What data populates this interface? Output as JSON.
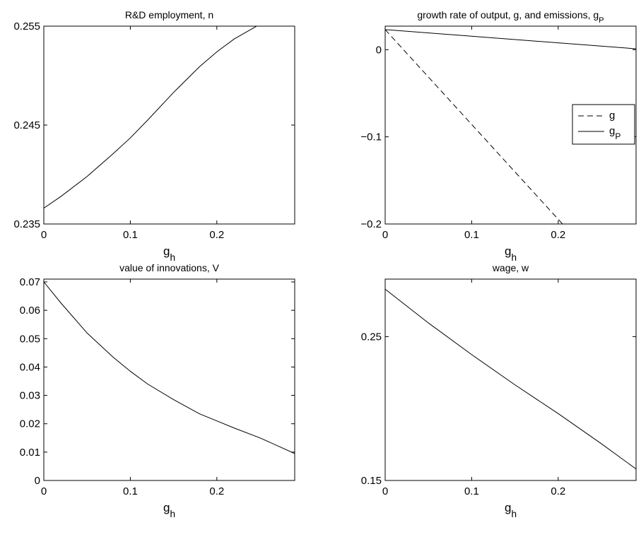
{
  "chart_data": [
    {
      "type": "line",
      "title": "R&D employment, n",
      "xlabel": "g",
      "xlabel_sub": "h",
      "ylabel": "",
      "xlim": [
        0,
        0.29
      ],
      "ylim": [
        0.235,
        0.255
      ],
      "xticks": [
        0,
        0.1,
        0.2
      ],
      "xtick_labels": [
        "0",
        "0.1",
        "0.2"
      ],
      "yticks": [
        0.235,
        0.245,
        0.255
      ],
      "ytick_labels": [
        "0.235",
        "0.245",
        "0.255"
      ],
      "series": [
        {
          "style": "solid",
          "x": [
            0,
            0.02,
            0.05,
            0.08,
            0.1,
            0.12,
            0.15,
            0.18,
            0.2,
            0.22,
            0.25,
            0.29
          ],
          "y": [
            0.2366,
            0.2378,
            0.2398,
            0.2421,
            0.2437,
            0.2455,
            0.2483,
            0.2509,
            0.2524,
            0.2537,
            0.2552,
            0.257
          ]
        }
      ]
    },
    {
      "type": "line",
      "title": "growth rate of output, g, and emissions, g",
      "title_sub": "P",
      "xlabel": "g",
      "xlabel_sub": "h",
      "ylabel": "",
      "xlim": [
        0,
        0.29
      ],
      "ylim": [
        -0.2,
        0.027
      ],
      "xticks": [
        0,
        0.1,
        0.2
      ],
      "xtick_labels": [
        "0",
        "0.1",
        "0.2"
      ],
      "yticks": [
        -0.2,
        -0.1,
        0
      ],
      "ytick_labels": [
        "−0.2",
        "−0.1",
        "0"
      ],
      "legend": {
        "position": "right",
        "entries": [
          {
            "label": "g",
            "sub": "",
            "style": "dashed"
          },
          {
            "label": "g",
            "sub": "P",
            "style": "solid"
          }
        ]
      },
      "series": [
        {
          "style": "dashed",
          "x": [
            0,
            0.205
          ],
          "y": [
            0.023,
            -0.2
          ]
        },
        {
          "style": "solid",
          "x": [
            0,
            0.29
          ],
          "y": [
            0.023,
            0.001
          ]
        }
      ]
    },
    {
      "type": "line",
      "title": "value of innovations, V",
      "xlabel": "g",
      "xlabel_sub": "h",
      "ylabel": "",
      "xlim": [
        0,
        0.29
      ],
      "ylim": [
        0,
        0.071
      ],
      "xticks": [
        0,
        0.1,
        0.2
      ],
      "xtick_labels": [
        "0",
        "0.1",
        "0.2"
      ],
      "yticks": [
        0,
        0.01,
        0.02,
        0.03,
        0.04,
        0.05,
        0.06,
        0.07
      ],
      "ytick_labels": [
        "0",
        "0.01",
        "0.02",
        "0.03",
        "0.04",
        "0.05",
        "0.06",
        "0.07"
      ],
      "series": [
        {
          "style": "solid",
          "x": [
            0,
            0.02,
            0.05,
            0.08,
            0.1,
            0.12,
            0.15,
            0.18,
            0.2,
            0.22,
            0.25,
            0.29
          ],
          "y": [
            0.07,
            0.0625,
            0.052,
            0.0435,
            0.0385,
            0.034,
            0.0285,
            0.0235,
            0.021,
            0.0185,
            0.015,
            0.0095
          ]
        }
      ]
    },
    {
      "type": "line",
      "title": "wage, w",
      "xlabel": "g",
      "xlabel_sub": "h",
      "ylabel": "",
      "xlim": [
        0,
        0.29
      ],
      "ylim": [
        0.15,
        0.29
      ],
      "xticks": [
        0,
        0.1,
        0.2
      ],
      "xtick_labels": [
        "0",
        "0.1",
        "0.2"
      ],
      "yticks": [
        0.15,
        0.25
      ],
      "ytick_labels": [
        "0.15",
        "0.25"
      ],
      "series": [
        {
          "style": "solid",
          "x": [
            0,
            0.05,
            0.1,
            0.15,
            0.2,
            0.25,
            0.29
          ],
          "y": [
            0.283,
            0.2595,
            0.2375,
            0.2165,
            0.1965,
            0.1755,
            0.158
          ]
        }
      ]
    }
  ]
}
